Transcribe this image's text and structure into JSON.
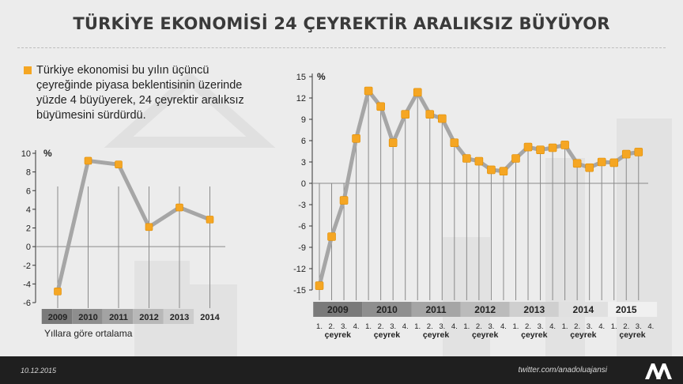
{
  "title": "TÜRKİYE EKONOMİSİ 24 ÇEYREKTİR ARALIKSIZ BÜYÜYOR",
  "intro": "Türkiye ekonomisi bu yılın üçüncü çeyreğinde piyasa beklentisinin üzerinde yüzde 4 büyüyerek, 24 çeyrektir aralıksız büyümesini sürdürdü.",
  "footer": {
    "date": "10.12.2015",
    "handle": "twitter.com/anadoluajansi",
    "logo_text": "AA"
  },
  "colors": {
    "line": "#a6a6a6",
    "marker": "#f5a623",
    "marker_stroke": "#e08c00",
    "axis": "#333333",
    "grid": "#8a8a8a"
  },
  "chart_data": [
    {
      "type": "line",
      "title": "",
      "ylabel": "%",
      "caption": "Yıllara göre ortalama",
      "categories": [
        "2009",
        "2010",
        "2011",
        "2012",
        "2013",
        "2014"
      ],
      "values": [
        -4.8,
        9.2,
        8.8,
        2.1,
        4.2,
        2.9
      ],
      "ylim": [
        -6,
        10
      ],
      "yticks": [
        10,
        8,
        6,
        4,
        2,
        0,
        -2,
        -4,
        -6
      ],
      "grid": true
    },
    {
      "type": "line",
      "title": "",
      "ylabel": "%",
      "years": [
        "2009",
        "2010",
        "2011",
        "2012",
        "2013",
        "2014",
        "2015"
      ],
      "quarter_labels": [
        "1.",
        "2.",
        "3.",
        "4."
      ],
      "quarter_word": "çeyrek",
      "x": [
        "2009-Q1",
        "2009-Q2",
        "2009-Q3",
        "2009-Q4",
        "2010-Q1",
        "2010-Q2",
        "2010-Q3",
        "2010-Q4",
        "2011-Q1",
        "2011-Q2",
        "2011-Q3",
        "2011-Q4",
        "2012-Q1",
        "2012-Q2",
        "2012-Q3",
        "2012-Q4",
        "2013-Q1",
        "2013-Q2",
        "2013-Q3",
        "2013-Q4",
        "2014-Q1",
        "2014-Q2",
        "2014-Q3",
        "2014-Q4",
        "2015-Q1",
        "2015-Q2",
        "2015-Q3"
      ],
      "values": [
        -14.4,
        -7.5,
        -2.4,
        6.3,
        13.0,
        10.8,
        5.7,
        9.7,
        12.8,
        9.7,
        9.1,
        5.7,
        3.5,
        3.1,
        1.9,
        1.7,
        3.5,
        5.1,
        4.7,
        5.0,
        5.4,
        2.8,
        2.2,
        3.0,
        2.9,
        4.1,
        4.4
      ],
      "ylim": [
        -15,
        15
      ],
      "yticks": [
        15,
        12,
        9,
        6,
        3,
        0,
        -3,
        -6,
        -9,
        -12,
        -15
      ],
      "grid": true
    }
  ]
}
